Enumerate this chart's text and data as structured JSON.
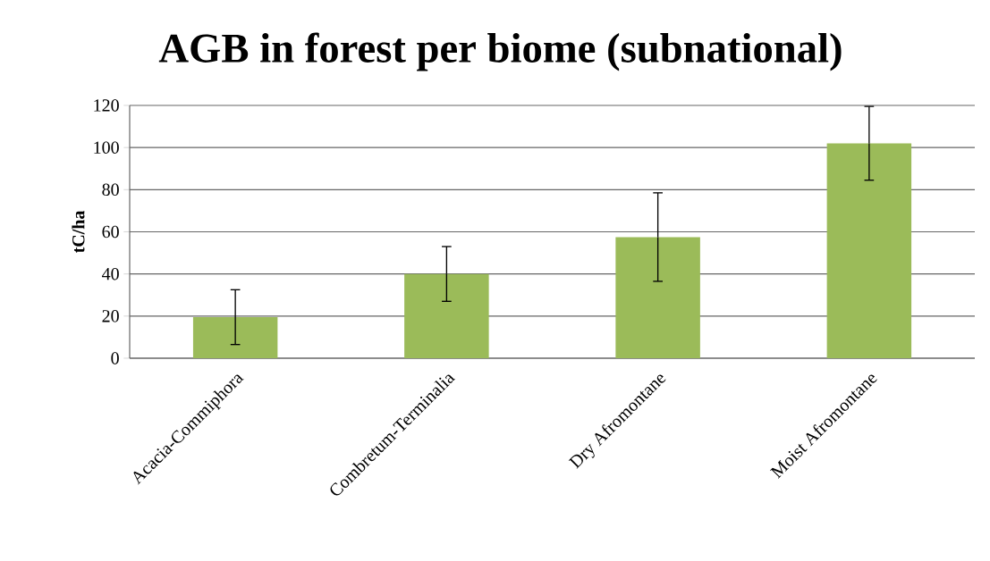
{
  "chart_data": {
    "type": "bar",
    "title": "AGB in forest per biome (subnational)",
    "ylabel": "tC/ha",
    "categories": [
      "Acacia-Commiphora",
      "Combretum-Terminalia",
      "Dry Afromontane",
      "Moist Afromontane"
    ],
    "values": [
      19.5,
      40,
      57.5,
      102
    ],
    "errors": [
      13,
      13,
      21,
      17.5
    ],
    "color": "#9bbb59",
    "ylim": [
      0,
      120
    ],
    "yticks": [
      0,
      20,
      40,
      60,
      80,
      100,
      120
    ],
    "grid": "y"
  }
}
